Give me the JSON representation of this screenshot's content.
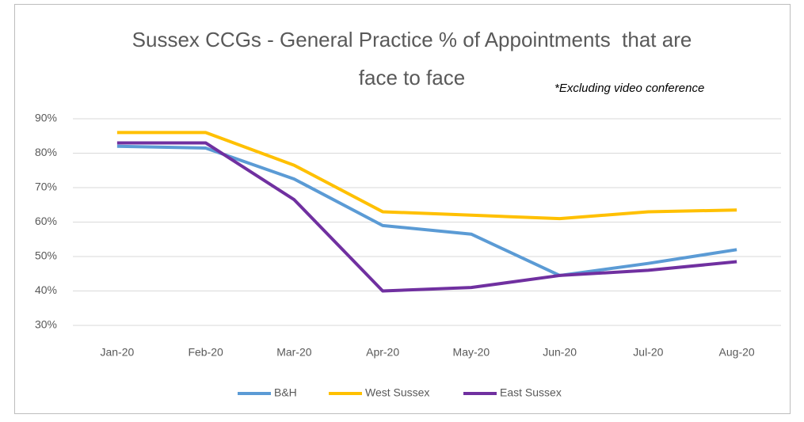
{
  "chart_data": {
    "type": "line",
    "title": "Sussex CCGs - General Practice % of Appointments  that are face to face",
    "annotation": "*Excluding video conference",
    "categories": [
      "Jan-20",
      "Feb-20",
      "Mar-20",
      "Apr-20",
      "May-20",
      "Jun-20",
      "Jul-20",
      "Aug-20"
    ],
    "series": [
      {
        "name": "B&H",
        "color": "#5b9bd5",
        "values": [
          82,
          81.5,
          72.5,
          59,
          56.5,
          44.5,
          48,
          52
        ]
      },
      {
        "name": "West Sussex",
        "color": "#ffc000",
        "values": [
          86,
          86,
          76.5,
          63,
          62,
          61,
          63,
          63.5
        ]
      },
      {
        "name": "East Sussex",
        "color": "#7030a0",
        "values": [
          83,
          83,
          66.5,
          40,
          41,
          44.5,
          46,
          48.5
        ]
      }
    ],
    "ylim": [
      30,
      90
    ],
    "yticks": [
      {
        "value": 30,
        "label": "30%"
      },
      {
        "value": 40,
        "label": "40%"
      },
      {
        "value": 50,
        "label": "50%"
      },
      {
        "value": 60,
        "label": "60%"
      },
      {
        "value": 70,
        "label": "70%"
      },
      {
        "value": 80,
        "label": "80%"
      },
      {
        "value": 90,
        "label": "90%"
      }
    ],
    "grid": true,
    "legend": "bottom"
  }
}
